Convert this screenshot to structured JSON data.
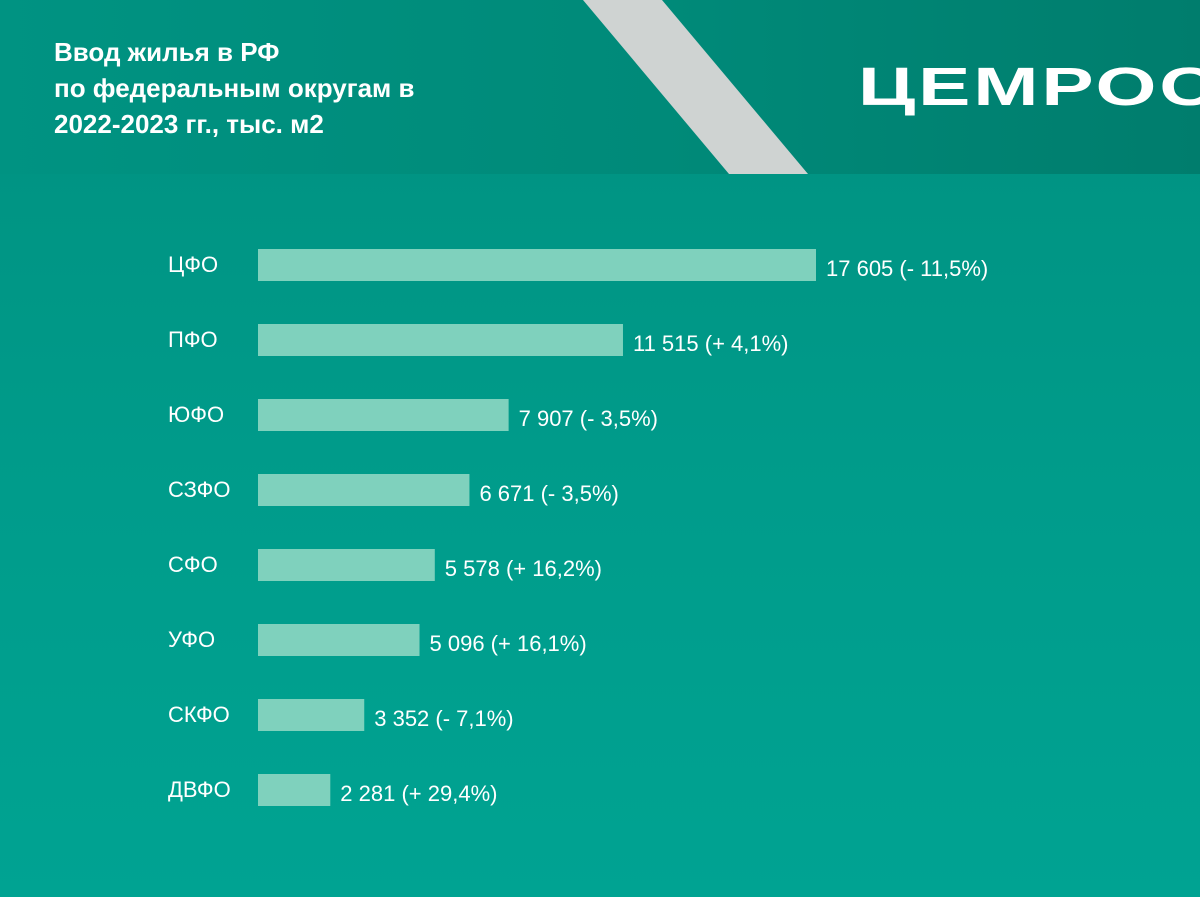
{
  "title": "Ввод жилья в РФ\nпо федеральным округам в\n2022-2023 гг., тыс. м2",
  "logo": "ЦЕМРОС",
  "colors": {
    "bar": "#7fd1bd",
    "text": "#ffffff",
    "header_stripe": "#cfd3d2"
  },
  "chart_data": {
    "type": "bar",
    "orientation": "horizontal",
    "title": "Ввод жилья в РФ по федеральным округам в 2022-2023 гг., тыс. м2",
    "categories": [
      "ЦФО",
      "ПФО",
      "ЮФО",
      "СЗФО",
      "СФО",
      "УФО",
      "СКФО",
      "ДВФО"
    ],
    "values": [
      17605,
      11515,
      7907,
      6671,
      5578,
      5096,
      3352,
      2281
    ],
    "value_labels": [
      "17 605 (- 11,5%)",
      "11 515 (+ 4,1%)",
      "7 907 (- 3,5%)",
      "6 671 (- 3,5%)",
      "5 578 (+ 16,2%)",
      "5 096 (+ 16,1%)",
      "3 352 (- 7,1%)",
      "2 281 (+ 29,4%)"
    ],
    "xlim": [
      0,
      17605
    ],
    "grid": false,
    "legend": "none"
  }
}
